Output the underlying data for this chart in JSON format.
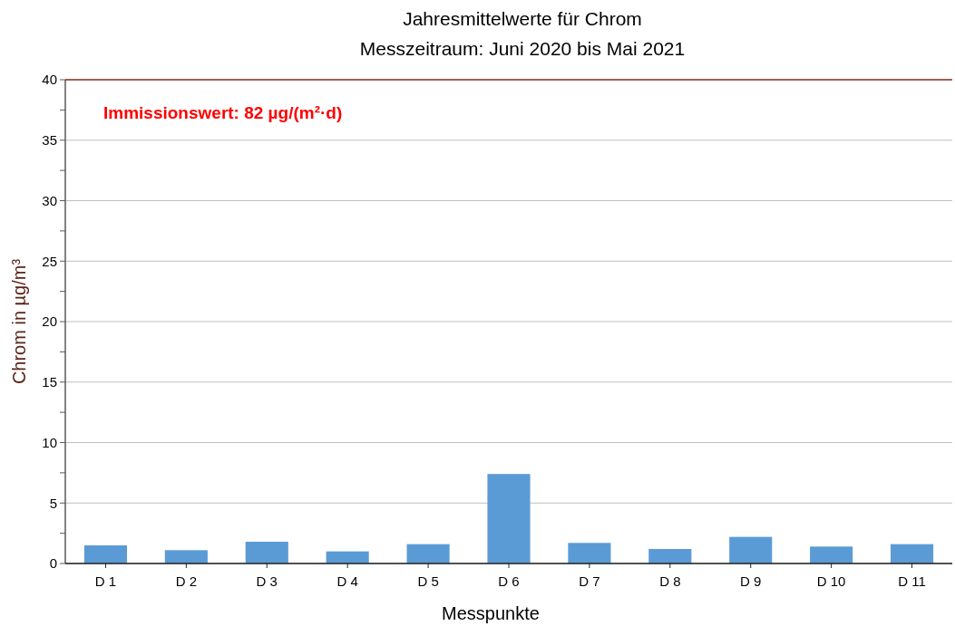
{
  "chart_data": {
    "type": "bar",
    "title": "Jahresmittelwerte für Chrom",
    "subtitle": "Messzeitraum: Juni 2020 bis Mai 2021",
    "xlabel": "Messpunkte",
    "ylabel": "Chrom in µg/m³",
    "categories": [
      "D 1",
      "D 2",
      "D 3",
      "D 4",
      "D 5",
      "D 6",
      "D 7",
      "D 8",
      "D 9",
      "D 10",
      "D 11"
    ],
    "values": [
      1.5,
      1.1,
      1.8,
      1.0,
      1.6,
      7.4,
      1.7,
      1.2,
      2.2,
      1.4,
      1.6
    ],
    "color": "#5b9bd5",
    "ylim": [
      0,
      40
    ],
    "yticks": [
      0,
      {
        "value": 2.5,
        "label": null
      },
      5,
      {
        "value": 7.5,
        "label": null
      },
      10,
      {
        "value": 12.5,
        "label": null
      },
      15,
      {
        "value": 17.5,
        "label": null
      },
      20,
      {
        "value": 22.5,
        "label": null
      },
      25,
      {
        "value": 27.5,
        "label": null
      },
      30,
      {
        "value": 32.5,
        "label": null
      },
      35,
      {
        "value": 37.5,
        "label": null
      },
      40
    ],
    "grid": "y",
    "annotations": [
      "Immissionswert: 82 µg/(m²·d)"
    ]
  }
}
